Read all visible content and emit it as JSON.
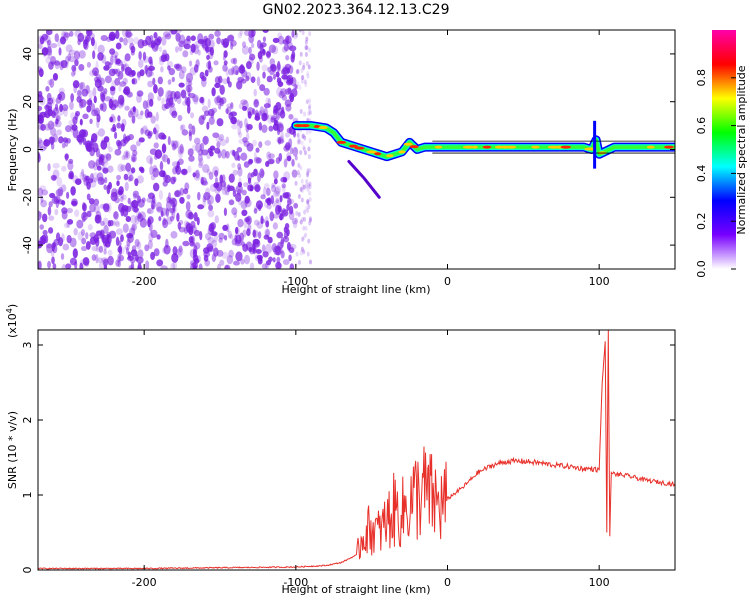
{
  "figure": {
    "title": "GN02.2023.364.12.13.C29"
  },
  "chart_data": [
    {
      "type": "heatmap",
      "title": "",
      "xlabel": "Height of straight line (km)",
      "ylabel": "Frequency (Hz)",
      "xlim": [
        -270,
        150
      ],
      "ylim": [
        -50,
        50
      ],
      "xticks": [
        -200,
        -100,
        0,
        100
      ],
      "xtick_labels": [
        "-200",
        "-100",
        "0",
        "100"
      ],
      "yticks": [
        -40,
        -20,
        0,
        20,
        40
      ],
      "ytick_labels": [
        "-40",
        "-20",
        "0",
        "20",
        "40"
      ],
      "colorbar": {
        "label": "Normalized spectral amplitude",
        "range": [
          0,
          1
        ],
        "ticks": [
          0.0,
          0.2,
          0.4,
          0.6,
          0.8
        ],
        "tick_labels": [
          "0.0",
          "0.2",
          "0.4",
          "0.6",
          "0.8"
        ],
        "colormap": [
          "#ffffff",
          "#7700ff",
          "#0000ff",
          "#00ffff",
          "#00ff00",
          "#ffff00",
          "#ff0000",
          "#ff00aa"
        ]
      },
      "regions": {
        "noise_x_range": [
          -270,
          -100
        ],
        "noise_color": "#7a1fe0"
      },
      "ridge": {
        "x": [
          -100,
          -90,
          -80,
          -75,
          -70,
          -60,
          -50,
          -40,
          -30,
          -25,
          -20,
          -15,
          -10,
          0,
          20,
          40,
          60,
          80,
          90,
          95,
          98,
          100,
          110,
          130,
          150
        ],
        "y": [
          10,
          10,
          9,
          7,
          3,
          1,
          -1,
          -3,
          -1,
          3,
          0,
          1,
          1,
          1,
          1,
          1,
          1,
          1,
          1,
          0,
          4,
          -2,
          1,
          1,
          1
        ]
      },
      "branch": {
        "x": [
          -65,
          -55,
          -45
        ],
        "y": [
          -5,
          -12,
          -20
        ]
      }
    },
    {
      "type": "line",
      "title": "",
      "xlabel": "Height of straight line (km)",
      "ylabel": "SNR (10 * v/v)",
      "scale_note": "(x10^4)",
      "scale_base": "(x10",
      "scale_exp": "4",
      "xlim": [
        -270,
        150
      ],
      "ylim": [
        0,
        3.2
      ],
      "xticks": [
        -200,
        -100,
        0,
        100
      ],
      "xtick_labels": [
        "-200",
        "-100",
        "0",
        "100"
      ],
      "yticks": [
        0,
        1,
        2,
        3
      ],
      "ytick_labels": [
        "0",
        "1",
        "2",
        "3"
      ],
      "color": "#e8302a",
      "envelope": {
        "x": [
          -270,
          -200,
          -150,
          -100,
          -80,
          -70,
          -60,
          -55,
          -50,
          -45,
          -40,
          -35,
          -30,
          -25,
          -20,
          -15,
          -10,
          -5,
          0,
          10,
          20,
          30,
          40,
          50,
          60,
          70,
          80,
          90,
          95,
          100,
          102,
          104,
          105,
          106,
          107,
          108,
          110,
          120,
          130,
          140,
          150
        ],
        "y": [
          0.02,
          0.02,
          0.03,
          0.04,
          0.06,
          0.1,
          0.2,
          0.5,
          0.55,
          0.5,
          0.65,
          0.8,
          0.75,
          0.9,
          1.0,
          1.05,
          0.95,
          0.85,
          0.95,
          1.1,
          1.3,
          1.4,
          1.45,
          1.45,
          1.43,
          1.4,
          1.38,
          1.35,
          1.35,
          1.33,
          2.5,
          3.05,
          0.5,
          3.2,
          0.45,
          1.3,
          1.28,
          1.25,
          1.2,
          1.17,
          1.14
        ]
      }
    }
  ]
}
